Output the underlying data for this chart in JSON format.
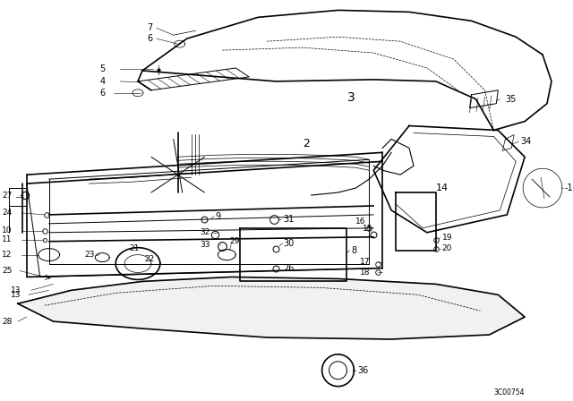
{
  "background_color": "#ffffff",
  "line_color": "#000000",
  "fig_width": 6.4,
  "fig_height": 4.48,
  "dpi": 100,
  "watermark": "3C00754"
}
